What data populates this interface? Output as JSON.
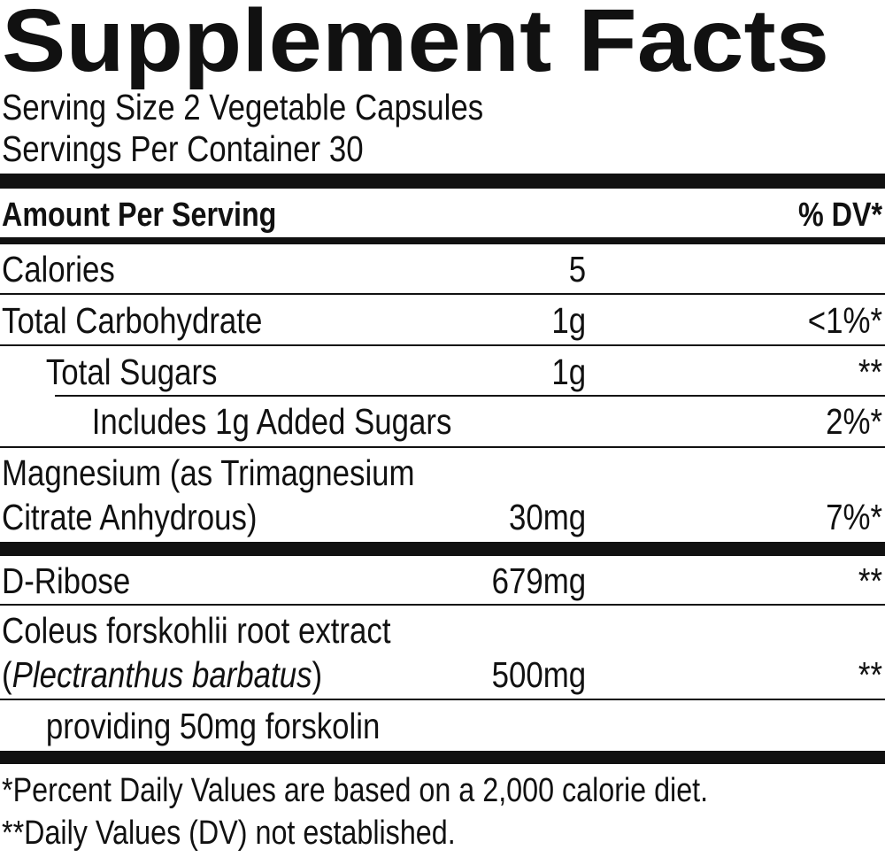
{
  "title": "Supplement Facts",
  "serving_size": "Serving Size 2 Vegetable Capsules",
  "servings_per_container": "Servings Per Container 30",
  "header": {
    "amount": "Amount Per Serving",
    "dv": "% DV*"
  },
  "rows": [
    {
      "name": "Calories",
      "amount": "5"
    },
    {
      "name": "Total Carbohydrate",
      "amount": "1g",
      "dv": "<1%*"
    },
    {
      "name": "Total Sugars",
      "amount": "1g",
      "dv": "**"
    },
    {
      "name": "Includes 1g Added Sugars",
      "dv": "2%*"
    },
    {
      "name_lines": [
        "Magnesium (as Trimagnesium",
        "Citrate Anhydrous)"
      ],
      "amount": "30mg",
      "dv": "7%*"
    },
    {
      "name": "D-Ribose",
      "amount": "679mg",
      "dv": "**"
    },
    {
      "name_line_1": "Coleus forskohlii root extract",
      "name_line_2_parts": [
        "(",
        "Plectranthus barbatus",
        ")"
      ],
      "amount": "500mg",
      "dv": "**"
    },
    {
      "name": "providing 50mg forskolin"
    }
  ],
  "footnotes": [
    "*Percent Daily Values are based on a 2,000 calorie diet.",
    "**Daily Values (DV) not established."
  ]
}
